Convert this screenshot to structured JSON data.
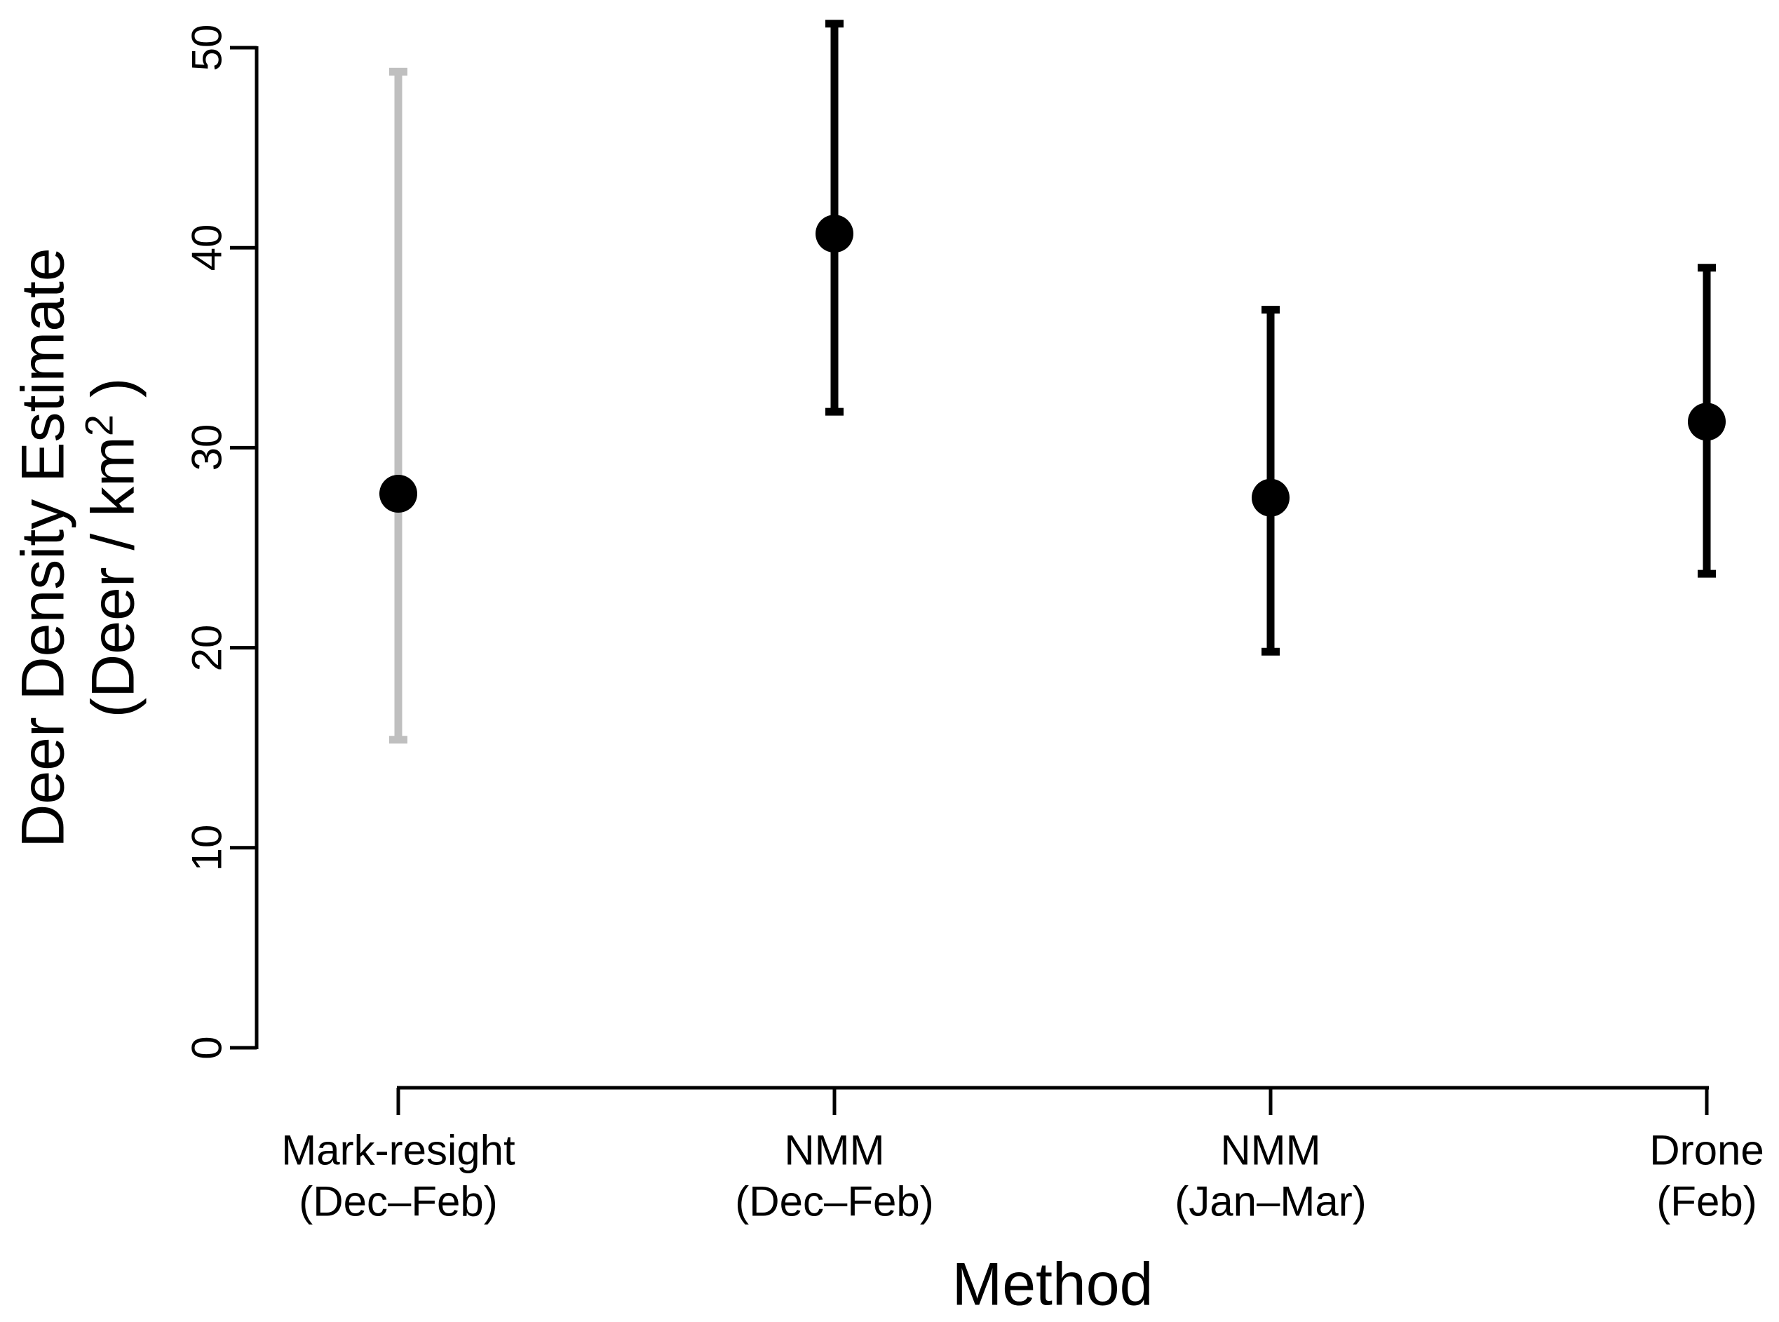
{
  "chart_data": {
    "type": "pointrange",
    "title": "",
    "xlabel": "Method",
    "ylabel_line1": "Deer Density Estimate",
    "ylabel_line2": {
      "prefix": "(Deer / km",
      "superscript": "2",
      "suffix": " )"
    },
    "ylim": [
      0,
      50
    ],
    "yticks": [
      0,
      10,
      20,
      30,
      40,
      50
    ],
    "grid": false,
    "legend": "none",
    "axis_color": "#000000",
    "background_color": "#ffffff",
    "points": [
      {
        "label_line1": "Mark-resight",
        "label_line2": "(Dec–Feb)",
        "estimate": 27.7,
        "ci_low": 15.4,
        "ci_high": 48.8,
        "point_color": "#000000",
        "bar_color": "#bfbfbf"
      },
      {
        "label_line1": "NMM",
        "label_line2": "(Dec–Feb)",
        "estimate": 40.7,
        "ci_low": 31.8,
        "ci_high": 51.2,
        "point_color": "#000000",
        "bar_color": "#000000"
      },
      {
        "label_line1": "NMM",
        "label_line2": "(Jan–Mar)",
        "estimate": 27.5,
        "ci_low": 19.8,
        "ci_high": 36.9,
        "point_color": "#000000",
        "bar_color": "#000000"
      },
      {
        "label_line1": "Drone",
        "label_line2": "(Feb)",
        "estimate": 31.3,
        "ci_low": 23.7,
        "ci_high": 39.0,
        "point_color": "#000000",
        "bar_color": "#000000"
      }
    ]
  }
}
